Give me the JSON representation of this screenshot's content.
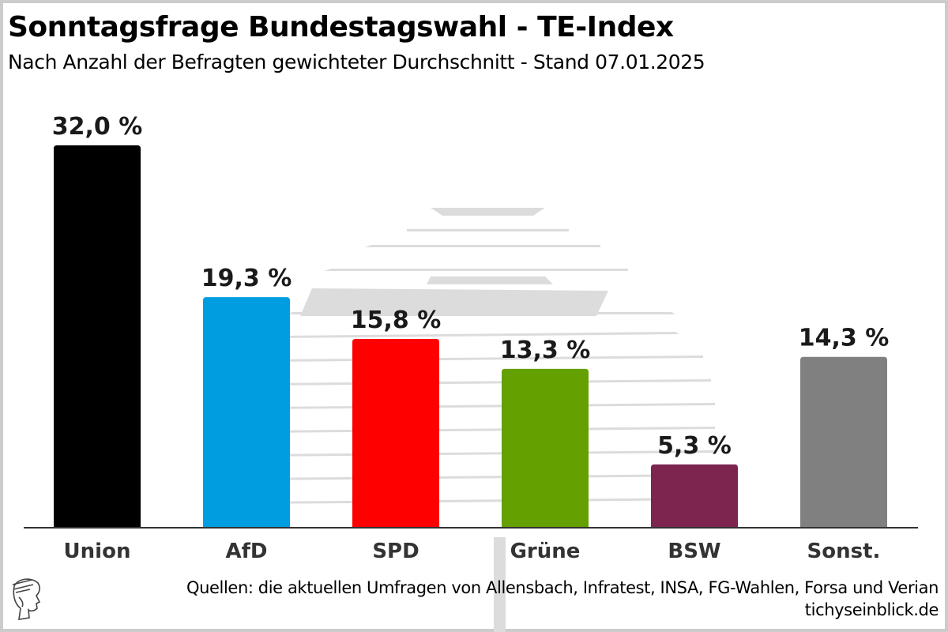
{
  "header": {
    "title": "Sonntagsfrage Bundestagswahl - TE-Index",
    "subtitle": "Nach Anzahl der Befragten gewichteter Durchschnitt - Stand 07.01.2025"
  },
  "footer": {
    "source": "Quellen: die aktuellen Umfragen von Allensbach, Infratest, INSA, FG-Wahlen, Forsa und Verian",
    "site": "tichyseinblick.de",
    "logo_icon": "hermes-head-logo-icon"
  },
  "chart_data": {
    "type": "bar",
    "title": "Sonntagsfrage Bundestagswahl - TE-Index",
    "subtitle": "Nach Anzahl der Befragten gewichteter Durchschnitt - Stand 07.01.2025",
    "xlabel": "",
    "ylabel": "",
    "ylim": [
      0,
      32
    ],
    "grid": false,
    "legend": "none",
    "categories": [
      "Union",
      "AfD",
      "SPD",
      "Grüne",
      "BSW",
      "Sonst."
    ],
    "values": [
      32.0,
      19.3,
      15.8,
      13.3,
      5.3,
      14.3
    ],
    "value_labels": [
      "32,0 %",
      "19,3 %",
      "15,8 %",
      "13,3 %",
      "5,3 %",
      "14,3 %"
    ],
    "colors": [
      "#000000",
      "#009ee0",
      "#ff0000",
      "#64a000",
      "#7d254f",
      "#808080"
    ],
    "unit": "%"
  }
}
